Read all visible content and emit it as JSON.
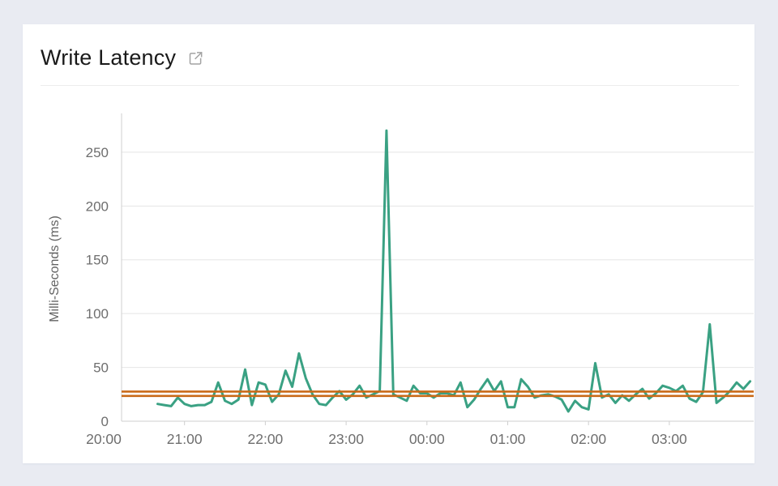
{
  "page": {
    "background_color": "#e9ebf2",
    "card_background_color": "#ffffff"
  },
  "header": {
    "title": "Write Latency",
    "icon": "external-link-icon"
  },
  "chart_data": {
    "type": "line",
    "title": "Write Latency",
    "xlabel": "",
    "ylabel": "Milli-Seconds (ms)",
    "x_tick_labels": [
      "20:00",
      "21:00",
      "22:00",
      "23:00",
      "00:00",
      "01:00",
      "02:00",
      "03:00"
    ],
    "y_ticks": [
      0,
      50,
      100,
      150,
      200,
      250
    ],
    "ylim": [
      0,
      285
    ],
    "x_range": [
      "20:00",
      "04:00"
    ],
    "grid": "horizontal",
    "legend_position": "none",
    "line_color": "#3aa183",
    "grid_color": "#e5e5e5",
    "axis_color": "#cfcfcf",
    "tick_label_color": "#6e6e6e",
    "reference_lines": [
      {
        "name": "upper-threshold",
        "value": 27.5,
        "color": "#c96a18"
      },
      {
        "name": "lower-threshold",
        "value": 23.5,
        "color": "#c96a18"
      }
    ],
    "series": [
      {
        "name": "write-latency-ms",
        "color": "#3aa183",
        "points": [
          [
            "20:40",
            16
          ],
          [
            "20:45",
            15
          ],
          [
            "20:50",
            14
          ],
          [
            "20:55",
            22
          ],
          [
            "21:00",
            16
          ],
          [
            "21:05",
            14
          ],
          [
            "21:10",
            15
          ],
          [
            "21:15",
            15
          ],
          [
            "21:20",
            18
          ],
          [
            "21:25",
            36
          ],
          [
            "21:30",
            19
          ],
          [
            "21:35",
            16
          ],
          [
            "21:40",
            20
          ],
          [
            "21:45",
            48
          ],
          [
            "21:50",
            15
          ],
          [
            "21:55",
            36
          ],
          [
            "22:00",
            34
          ],
          [
            "22:05",
            18
          ],
          [
            "22:10",
            25
          ],
          [
            "22:15",
            47
          ],
          [
            "22:20",
            32
          ],
          [
            "22:25",
            63
          ],
          [
            "22:30",
            40
          ],
          [
            "22:35",
            25
          ],
          [
            "22:40",
            16
          ],
          [
            "22:45",
            15
          ],
          [
            "22:50",
            22
          ],
          [
            "22:55",
            28
          ],
          [
            "23:00",
            20
          ],
          [
            "23:05",
            25
          ],
          [
            "23:10",
            33
          ],
          [
            "23:15",
            22
          ],
          [
            "23:20",
            25
          ],
          [
            "23:25",
            28
          ],
          [
            "23:30",
            270
          ],
          [
            "23:35",
            25
          ],
          [
            "23:40",
            22
          ],
          [
            "23:45",
            19
          ],
          [
            "23:50",
            33
          ],
          [
            "23:55",
            26
          ],
          [
            "00:00",
            26
          ],
          [
            "00:05",
            22
          ],
          [
            "00:10",
            26
          ],
          [
            "00:15",
            26
          ],
          [
            "00:20",
            24
          ],
          [
            "00:25",
            36
          ],
          [
            "00:30",
            13
          ],
          [
            "00:35",
            20
          ],
          [
            "00:40",
            30
          ],
          [
            "00:45",
            39
          ],
          [
            "00:50",
            28
          ],
          [
            "00:55",
            37
          ],
          [
            "01:00",
            13
          ],
          [
            "01:05",
            13
          ],
          [
            "01:10",
            39
          ],
          [
            "01:15",
            32
          ],
          [
            "01:20",
            22
          ],
          [
            "01:25",
            24
          ],
          [
            "01:30",
            25
          ],
          [
            "01:35",
            23
          ],
          [
            "01:40",
            20
          ],
          [
            "01:45",
            9
          ],
          [
            "01:50",
            19
          ],
          [
            "01:55",
            13
          ],
          [
            "02:00",
            11
          ],
          [
            "02:05",
            54
          ],
          [
            "02:10",
            22
          ],
          [
            "02:15",
            25
          ],
          [
            "02:20",
            17
          ],
          [
            "02:25",
            24
          ],
          [
            "02:30",
            19
          ],
          [
            "02:35",
            25
          ],
          [
            "02:40",
            30
          ],
          [
            "02:45",
            21
          ],
          [
            "02:50",
            26
          ],
          [
            "02:55",
            33
          ],
          [
            "03:00",
            31
          ],
          [
            "03:05",
            28
          ],
          [
            "03:10",
            33
          ],
          [
            "03:15",
            21
          ],
          [
            "03:20",
            18
          ],
          [
            "03:25",
            27
          ],
          [
            "03:30",
            90
          ],
          [
            "03:35",
            17
          ],
          [
            "03:40",
            22
          ],
          [
            "03:45",
            28
          ],
          [
            "03:50",
            36
          ],
          [
            "03:55",
            30
          ],
          [
            "04:00",
            37
          ]
        ]
      }
    ]
  }
}
